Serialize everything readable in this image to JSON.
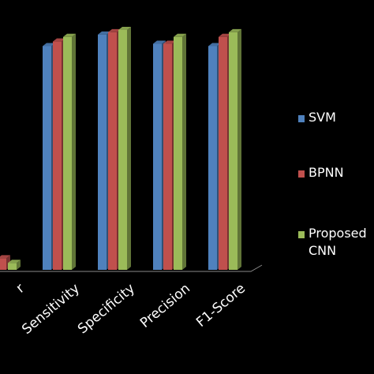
{
  "chart_data": {
    "type": "bar",
    "view": "3d-clustered",
    "categories": [
      "Accuracy",
      "Sensitivity",
      "Specificity",
      "Precision",
      "F1-Score"
    ],
    "visible_category_labels": [
      "r",
      "Sensitivity",
      "Specificity",
      "Precision",
      "F1-Score"
    ],
    "series": [
      {
        "name": "SVM",
        "color": "#4f81bd",
        "values": [
          7,
          97,
          102,
          98,
          97
        ]
      },
      {
        "name": "BPNN",
        "color": "#c0504d",
        "values": [
          5,
          99,
          103,
          98,
          101
        ]
      },
      {
        "name": "Proposed CNN",
        "color": "#9bbb59",
        "values": [
          3,
          101,
          104,
          101,
          103
        ]
      }
    ],
    "legend": {
      "position": "right",
      "labels": [
        "SVM",
        "BPNN",
        "Proposed\nCNN"
      ]
    },
    "grid": false,
    "background": "#000000"
  }
}
